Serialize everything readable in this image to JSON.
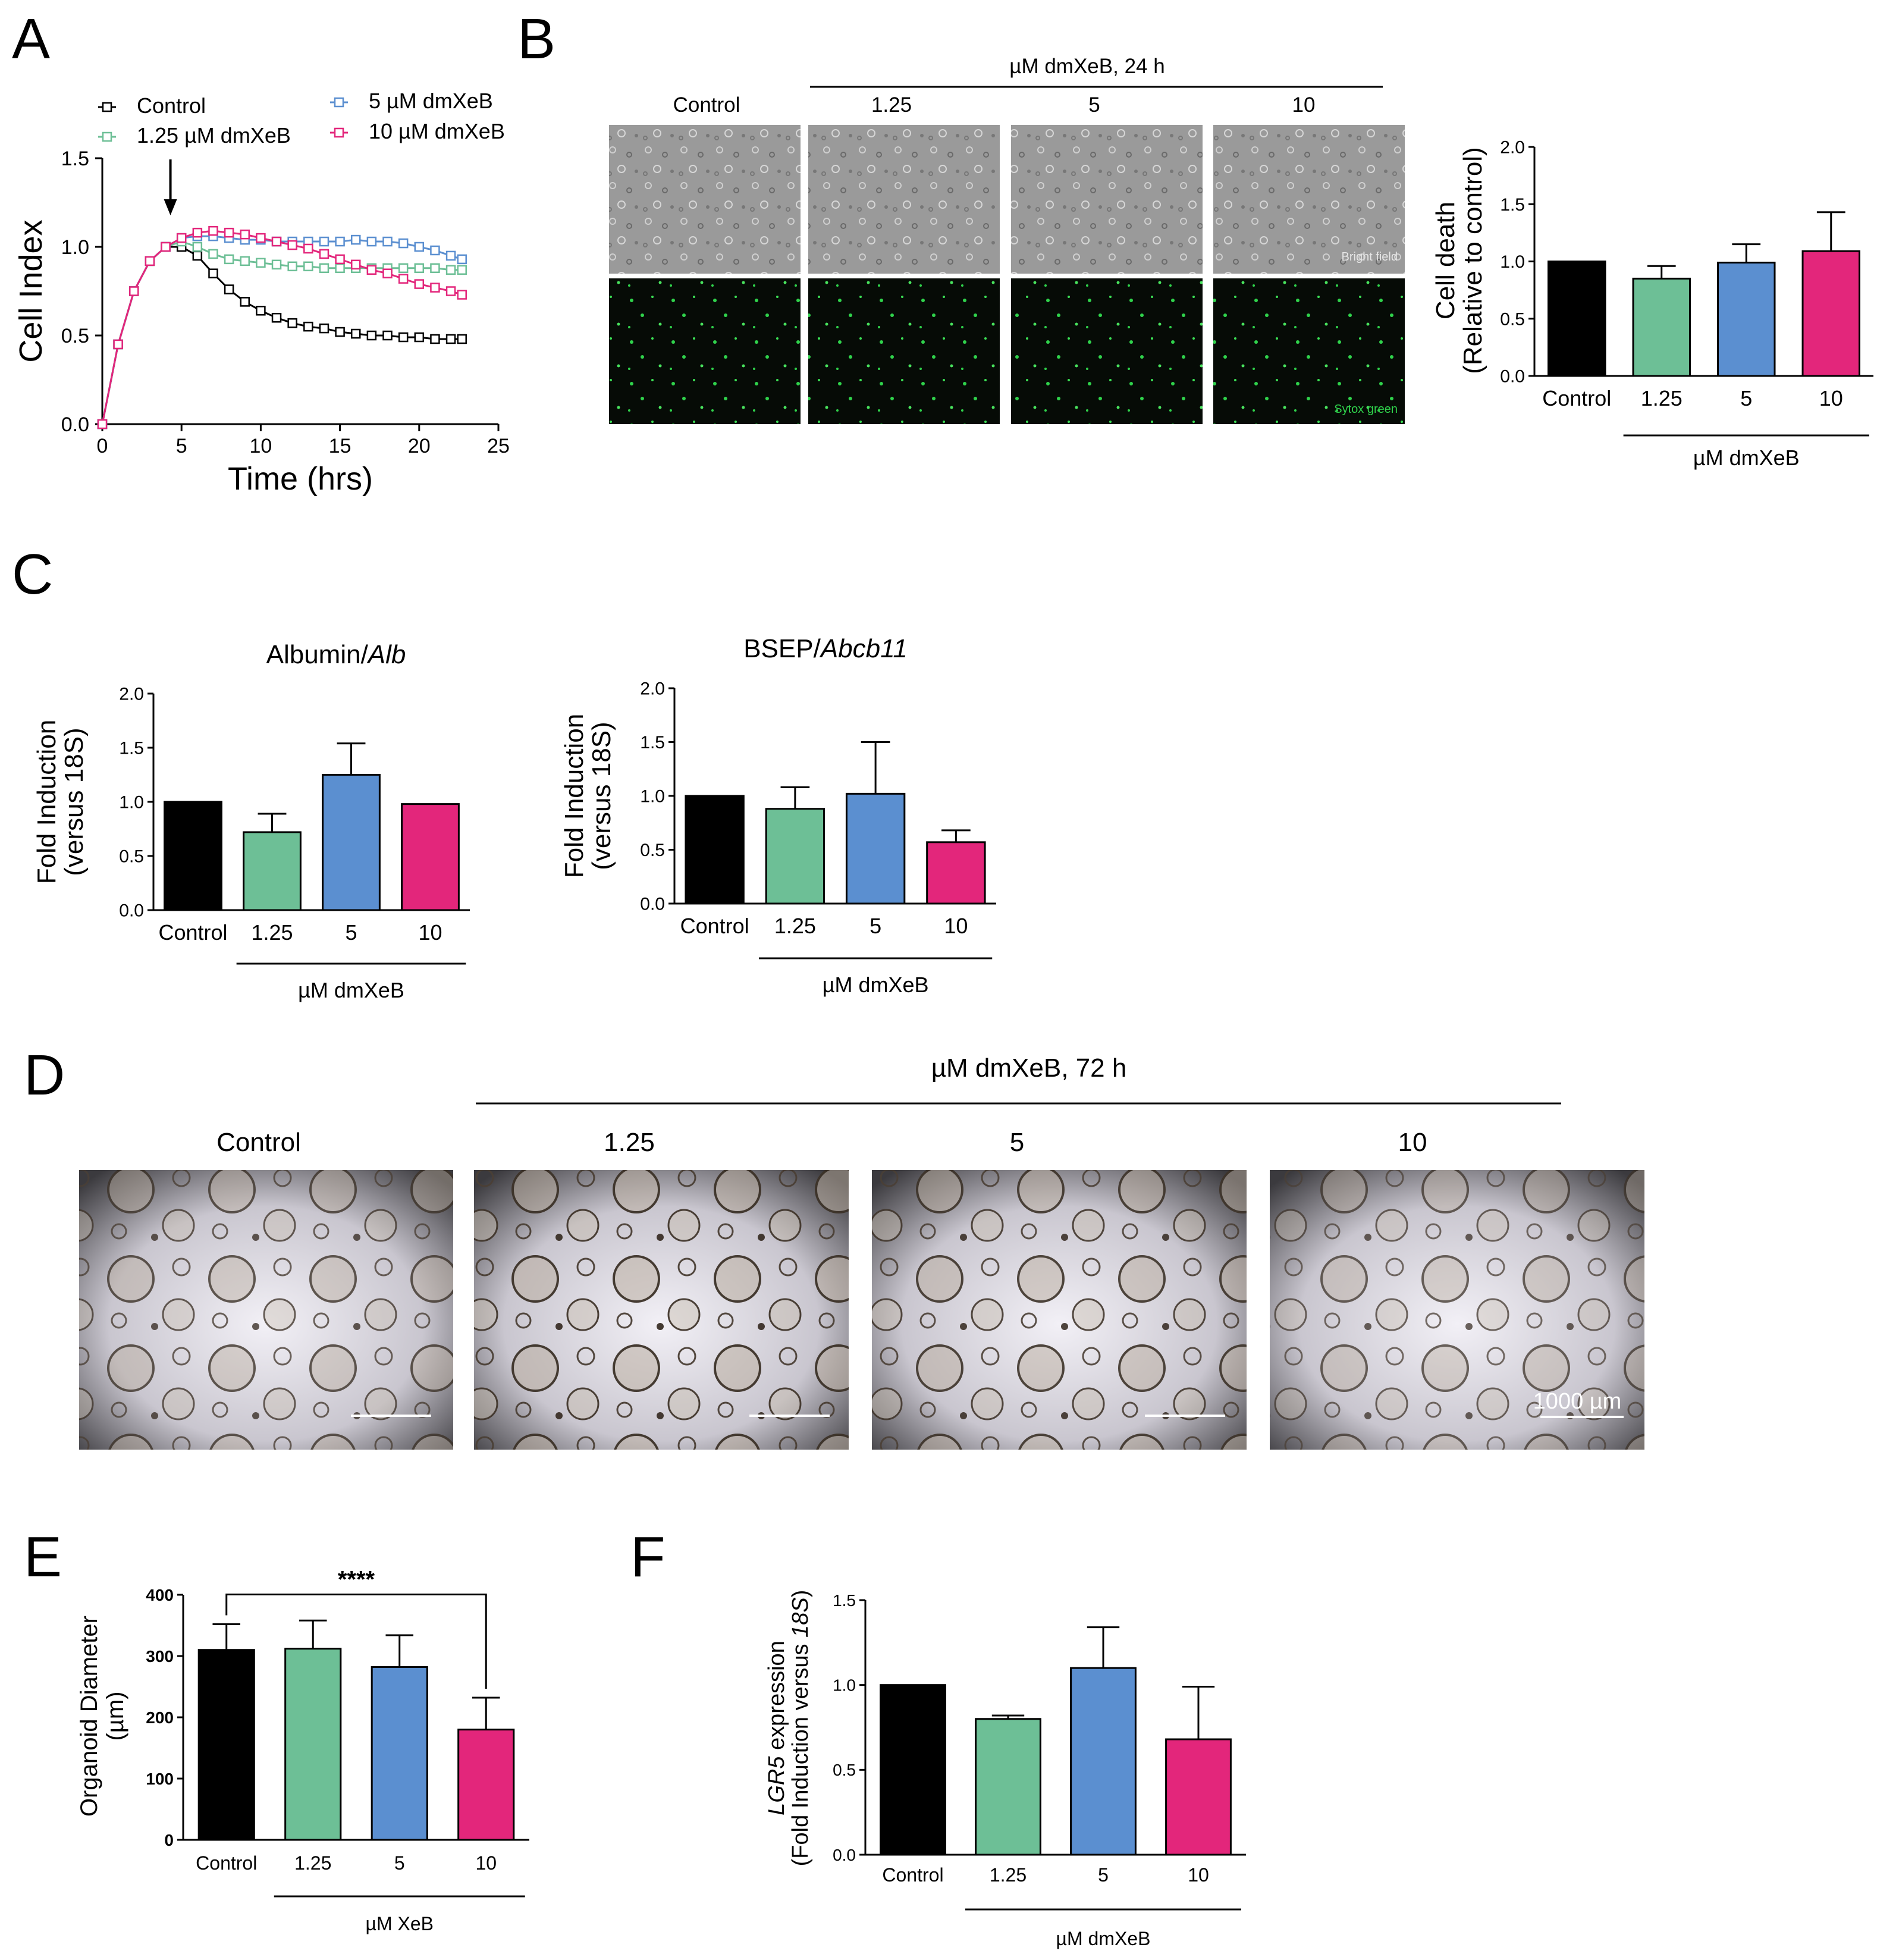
{
  "panels": {
    "A": "A",
    "B": "B",
    "C": "C",
    "D": "D",
    "E": "E",
    "F": "F"
  },
  "colors": {
    "control": "#000000",
    "c125": "#6dbf96",
    "c5": "#5b8fd0",
    "c10": "#e3267b",
    "fluor": "#2fd24b"
  },
  "B_header": {
    "group_label": "µM dmXeB, 24 h",
    "columns": [
      "Control",
      "1.25",
      "5",
      "10"
    ],
    "row_labels": [
      "Bright field",
      "Sytox green"
    ]
  },
  "D_header": {
    "group_label": "µM dmXeB, 72 h",
    "columns": [
      "Control",
      "1.25",
      "5",
      "10"
    ],
    "scale_bar": "1000 µm"
  },
  "chart_data": [
    {
      "id": "A",
      "type": "line",
      "xlabel": "Time (hrs)",
      "ylabel": "Cell Index",
      "xlim": [
        0,
        25
      ],
      "ylim": [
        0,
        1.5
      ],
      "xticks": [
        0,
        5,
        10,
        15,
        20,
        25
      ],
      "yticks": [
        0.0,
        0.5,
        1.0,
        1.5
      ],
      "annotation": "arrow at x = 4.3",
      "legend": "top",
      "x": [
        0,
        1,
        2,
        3,
        4,
        5,
        6,
        7,
        8,
        9,
        10,
        11,
        12,
        13,
        14,
        15,
        16,
        17,
        18,
        19,
        20,
        21,
        22,
        22.7
      ],
      "series": [
        {
          "name": "Control",
          "color": "#000000",
          "values": [
            0.0,
            0.45,
            0.75,
            0.92,
            1.0,
            1.0,
            0.95,
            0.85,
            0.76,
            0.69,
            0.64,
            0.6,
            0.57,
            0.55,
            0.54,
            0.52,
            0.51,
            0.5,
            0.5,
            0.49,
            0.49,
            0.48,
            0.48,
            0.48
          ]
        },
        {
          "name": "1.25 µM dmXeB",
          "color": "#6dbf96",
          "values": [
            0.0,
            0.45,
            0.75,
            0.92,
            1.0,
            1.03,
            1.0,
            0.96,
            0.93,
            0.92,
            0.91,
            0.9,
            0.89,
            0.89,
            0.88,
            0.88,
            0.88,
            0.88,
            0.88,
            0.88,
            0.88,
            0.88,
            0.87,
            0.87
          ]
        },
        {
          "name": "5 µM dmXeB",
          "color": "#5b8fd0",
          "values": [
            0.0,
            0.45,
            0.75,
            0.92,
            1.0,
            1.05,
            1.06,
            1.06,
            1.05,
            1.04,
            1.04,
            1.03,
            1.03,
            1.03,
            1.03,
            1.03,
            1.04,
            1.03,
            1.03,
            1.02,
            1.0,
            0.98,
            0.95,
            0.93
          ]
        },
        {
          "name": "10 µM dmXeB",
          "color": "#e3267b",
          "values": [
            0.0,
            0.45,
            0.75,
            0.92,
            1.0,
            1.05,
            1.08,
            1.09,
            1.08,
            1.07,
            1.05,
            1.03,
            1.01,
            0.99,
            0.96,
            0.93,
            0.9,
            0.87,
            0.85,
            0.82,
            0.79,
            0.77,
            0.75,
            0.73
          ]
        }
      ]
    },
    {
      "id": "B",
      "type": "bar",
      "ylabel": [
        "Cell death",
        "(Relative to control)"
      ],
      "ylim": [
        0,
        2.0
      ],
      "yticks": [
        0.0,
        0.5,
        1.0,
        1.5,
        2.0
      ],
      "ytick_decimals": 1,
      "categories": [
        "Control",
        "1.25",
        "5",
        "10"
      ],
      "values": [
        1.0,
        0.85,
        0.99,
        1.09
      ],
      "errors": [
        0.0,
        0.11,
        0.16,
        0.34
      ],
      "group_label": "µM dmXeB"
    },
    {
      "id": "C1",
      "type": "bar",
      "title": "Albumin/",
      "title_italic": "Alb",
      "ylabel": [
        "Fold  Induction",
        "(versus 18S)"
      ],
      "ylim": [
        0,
        2.0
      ],
      "yticks": [
        0.0,
        0.5,
        1.0,
        1.5,
        2.0
      ],
      "ytick_decimals": 1,
      "categories": [
        "Control",
        "1.25",
        "5",
        "10"
      ],
      "values": [
        1.0,
        0.72,
        1.25,
        0.98
      ],
      "errors": [
        0.0,
        0.17,
        0.29,
        0.0
      ],
      "group_label": "µM dmXeB"
    },
    {
      "id": "C2",
      "type": "bar",
      "title": "BSEP/",
      "title_italic": "Abcb11",
      "ylabel": [
        "Fold  Induction",
        "(versus 18S)"
      ],
      "ylim": [
        0,
        2.0
      ],
      "yticks": [
        0.0,
        0.5,
        1.0,
        1.5,
        2.0
      ],
      "ytick_decimals": 1,
      "categories": [
        "Control",
        "1.25",
        "5",
        "10"
      ],
      "values": [
        1.0,
        0.88,
        1.02,
        0.57
      ],
      "errors": [
        0.0,
        0.2,
        0.48,
        0.11
      ],
      "group_label": "µM dmXeB"
    },
    {
      "id": "E",
      "type": "bar",
      "ylabel": [
        "Organoid Diameter",
        "(µm)"
      ],
      "ylim": [
        0,
        400
      ],
      "yticks": [
        0,
        100,
        200,
        300,
        400
      ],
      "ytick_decimals": 0,
      "categories": [
        "Control",
        "1.25",
        "5",
        "10"
      ],
      "values": [
        310,
        312,
        282,
        180
      ],
      "errors": [
        42,
        46,
        52,
        52
      ],
      "significance": "****",
      "group_label": "µM XeB"
    },
    {
      "id": "F",
      "type": "bar",
      "ylabel_top_italic": "LGR5",
      "ylabel_top": " expression",
      "ylabel_bottom": "(Fold Induction versus ",
      "ylabel_bottom_italic": "18S",
      "ylabel_bottom_end": ")",
      "ylim": [
        0,
        1.5
      ],
      "yticks": [
        0.0,
        0.5,
        1.0,
        1.5
      ],
      "ytick_decimals": 1,
      "categories": [
        "Control",
        "1.25",
        "5",
        "10"
      ],
      "values": [
        1.0,
        0.8,
        1.1,
        0.68
      ],
      "errors": [
        0.0,
        0.02,
        0.24,
        0.31
      ],
      "group_label": "µM dmXeB"
    }
  ]
}
